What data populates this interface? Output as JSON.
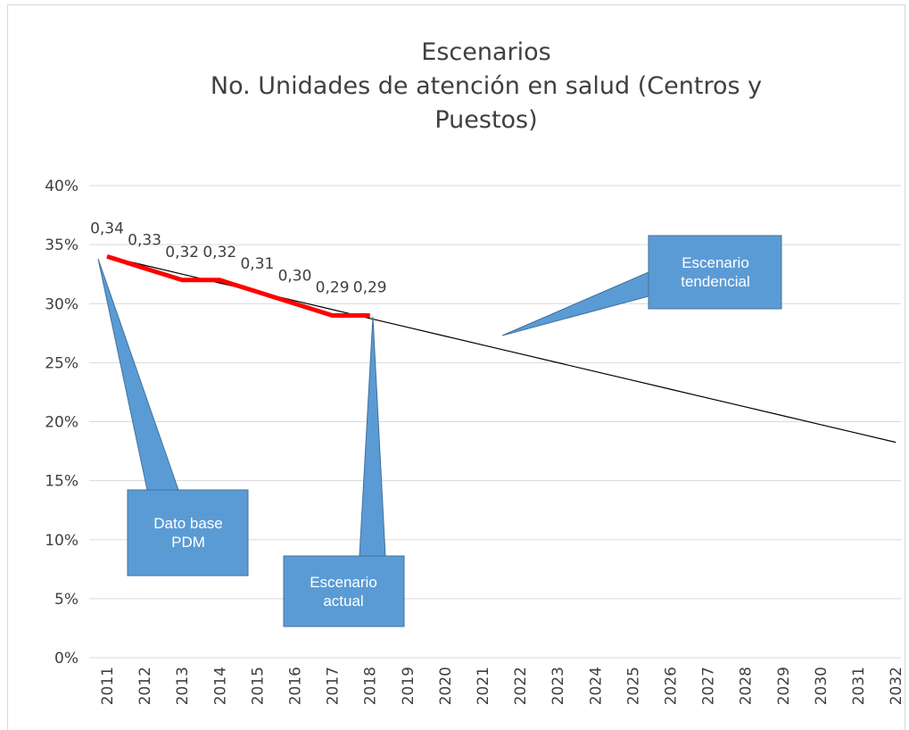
{
  "chart_data": {
    "type": "line",
    "title": "Escenarios",
    "subtitle": "No. Unidades de atención en salud (Centros y Puestos)",
    "categories": [
      "2011",
      "2012",
      "2013",
      "2014",
      "2015",
      "2016",
      "2017",
      "2018",
      "2019",
      "2020",
      "2021",
      "2022",
      "2023",
      "2024",
      "2025",
      "2026",
      "2027",
      "2028",
      "2029",
      "2030",
      "2031",
      "2032"
    ],
    "series": [
      {
        "color": "#ff0000",
        "values": [
          34,
          33,
          32,
          32,
          31,
          30,
          29,
          29,
          null,
          null,
          null,
          null,
          null,
          null,
          null,
          null,
          null,
          null,
          null,
          null,
          null,
          null
        ],
        "value_labels": [
          "0,34",
          "0,33",
          "0,32",
          "0,32",
          "0,31",
          "0,30",
          "0,29",
          "0,29",
          null,
          null,
          null,
          null,
          null,
          null,
          null,
          null,
          null,
          null,
          null,
          null,
          null,
          null
        ]
      },
      {
        "color": "#000000",
        "values": [
          34.0,
          33.25,
          32.5,
          31.75,
          31.0,
          30.25,
          29.5,
          28.75,
          28.0,
          27.25,
          26.5,
          25.75,
          25.0,
          24.25,
          23.5,
          22.75,
          22.0,
          21.25,
          20.5,
          19.75,
          19.0,
          18.25
        ]
      }
    ],
    "ylim": [
      0,
      40
    ],
    "yticks": [
      {
        "value": 0,
        "label": "0%"
      },
      {
        "value": 5,
        "label": "5%"
      },
      {
        "value": 10,
        "label": "10%"
      },
      {
        "value": 15,
        "label": "15%"
      },
      {
        "value": 20,
        "label": "20%"
      },
      {
        "value": 25,
        "label": "25%"
      },
      {
        "value": 30,
        "label": "30%"
      },
      {
        "value": 35,
        "label": "35%"
      },
      {
        "value": 40,
        "label": "40%"
      }
    ],
    "grid": true,
    "annotations": [
      {
        "text": "Dato base PDM"
      },
      {
        "text": "Escenario actual"
      },
      {
        "text": "Escenario tendencial"
      }
    ]
  }
}
